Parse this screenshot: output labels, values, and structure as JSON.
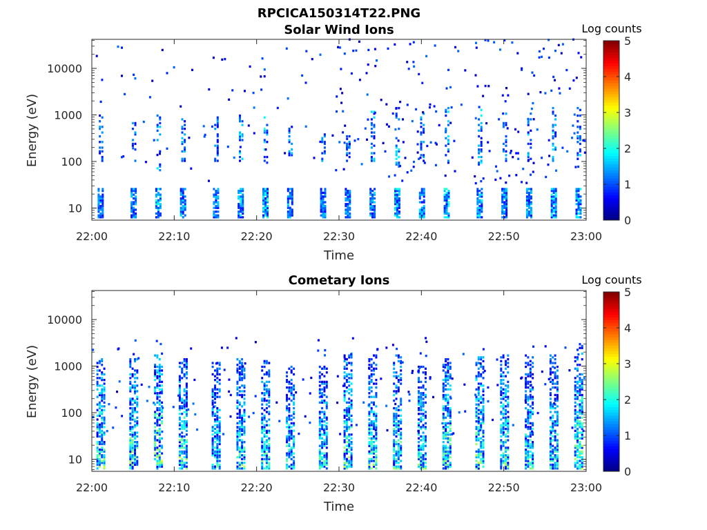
{
  "figure": {
    "title": "RPCICA150314T22.PNG"
  },
  "chart_data": [
    {
      "type": "heatmap",
      "title": "Solar Wind Ions",
      "xlabel": "Time",
      "ylabel": "Energy (eV)",
      "xticks": [
        "22:00",
        "22:10",
        "22:20",
        "22:30",
        "22:40",
        "22:50",
        "23:00"
      ],
      "xlim": [
        "22:00",
        "23:00"
      ],
      "yscale": "log",
      "ylim": [
        5.5,
        42000
      ],
      "yticks": [
        10,
        100,
        1000,
        10000
      ],
      "ytick_labels": [
        "10",
        "100",
        "1000",
        "10000"
      ],
      "colorbar": {
        "label": "Log counts",
        "range": [
          0,
          5
        ],
        "ticks": [
          "0",
          "1",
          "2",
          "3",
          "4",
          "5"
        ],
        "colormap": "jet"
      },
      "pattern": {
        "pulses": [
          {
            "t": "22:01",
            "lowE": [
              6,
              27
            ],
            "midE": [
              90,
              1000
            ],
            "lvl": 1.0
          },
          {
            "t": "22:05",
            "lowE": [
              6,
              27
            ],
            "midE": [
              100,
              900
            ],
            "lvl": 1.1
          },
          {
            "t": "22:08",
            "lowE": [
              6,
              27
            ],
            "midE": [
              60,
              1000
            ],
            "lvl": 1.6
          },
          {
            "t": "22:11",
            "lowE": [
              6,
              27
            ],
            "midE": [
              100,
              950
            ],
            "lvl": 1.2
          },
          {
            "t": "22:15",
            "lowE": [
              6,
              27
            ],
            "midE": [
              100,
              900
            ],
            "lvl": 1.1
          },
          {
            "t": "22:18",
            "lowE": [
              6,
              27
            ],
            "midE": [
              100,
              1000
            ],
            "lvl": 1.5
          },
          {
            "t": "22:21",
            "lowE": [
              6,
              27
            ],
            "midE": [
              90,
              950
            ],
            "lvl": 1.7
          },
          {
            "t": "22:24",
            "lowE": [
              6,
              27
            ],
            "midE": [
              120,
              600
            ],
            "lvl": 1.2
          },
          {
            "t": "22:28",
            "lowE": [
              6,
              27
            ],
            "midE": [
              100,
              400
            ],
            "lvl": 1.1
          },
          {
            "t": "22:31",
            "lowE": [
              6,
              27
            ],
            "midE": [
              100,
              400
            ],
            "lvl": 1.1
          },
          {
            "t": "22:34",
            "lowE": [
              6,
              27
            ],
            "midE": [
              100,
              1200
            ],
            "lvl": 1.3
          },
          {
            "t": "22:37",
            "lowE": [
              6,
              27
            ],
            "midE": [
              60,
              1500
            ],
            "lvl": 1.5
          },
          {
            "t": "22:40",
            "lowE": [
              6,
              27
            ],
            "midE": [
              100,
              1200
            ],
            "lvl": 1.2
          },
          {
            "t": "22:43",
            "lowE": [
              6,
              27
            ],
            "midE": [
              80,
              1500
            ],
            "lvl": 1.6
          },
          {
            "t": "22:47",
            "lowE": [
              6,
              27
            ],
            "midE": [
              80,
              1500
            ],
            "lvl": 1.4
          },
          {
            "t": "22:50",
            "lowE": [
              6,
              27
            ],
            "midE": [
              100,
              1200
            ],
            "lvl": 1.2
          },
          {
            "t": "22:53",
            "lowE": [
              6,
              27
            ],
            "midE": [
              80,
              1500
            ],
            "lvl": 1.3
          },
          {
            "t": "22:56",
            "lowE": [
              6,
              27
            ],
            "midE": [
              100,
              1500
            ],
            "lvl": 1.5
          },
          {
            "t": "22:59",
            "lowE": [
              6,
              27
            ],
            "midE": [
              100,
              1500
            ],
            "lvl": 1.4
          }
        ],
        "background_max_level": 1.0
      }
    },
    {
      "type": "heatmap",
      "title": "Cometary Ions",
      "xlabel": "Time",
      "ylabel": "Energy (eV)",
      "xticks": [
        "22:00",
        "22:10",
        "22:20",
        "22:30",
        "22:40",
        "22:50",
        "23:00"
      ],
      "xlim": [
        "22:00",
        "23:00"
      ],
      "yscale": "log",
      "ylim": [
        5.5,
        42000
      ],
      "yticks": [
        10,
        100,
        1000,
        10000
      ],
      "ytick_labels": [
        "10",
        "100",
        "1000",
        "10000"
      ],
      "colorbar": {
        "label": "Log counts",
        "range": [
          0,
          5
        ],
        "ticks": [
          "0",
          "1",
          "2",
          "3",
          "4",
          "5"
        ],
        "colormap": "jet"
      },
      "pattern": {
        "pulses": [
          {
            "t": "22:01",
            "range": [
              6,
              1500
            ],
            "lvl": 2.3
          },
          {
            "t": "22:05",
            "range": [
              6,
              1500
            ],
            "lvl": 2.3
          },
          {
            "t": "22:08",
            "range": [
              6,
              2000
            ],
            "lvl": 2.5
          },
          {
            "t": "22:11",
            "range": [
              6,
              1500
            ],
            "lvl": 2.3
          },
          {
            "t": "22:15",
            "range": [
              6,
              1300
            ],
            "lvl": 2.0
          },
          {
            "t": "22:18",
            "range": [
              6,
              1500
            ],
            "lvl": 2.1
          },
          {
            "t": "22:21",
            "range": [
              6,
              1500
            ],
            "lvl": 2.0
          },
          {
            "t": "22:24",
            "range": [
              6,
              1000
            ],
            "lvl": 1.9
          },
          {
            "t": "22:28",
            "range": [
              6,
              1000
            ],
            "lvl": 1.9
          },
          {
            "t": "22:31",
            "range": [
              6,
              2000
            ],
            "lvl": 2.3
          },
          {
            "t": "22:34",
            "range": [
              6,
              1800
            ],
            "lvl": 2.1
          },
          {
            "t": "22:37",
            "range": [
              6,
              1800
            ],
            "lvl": 2.2
          },
          {
            "t": "22:40",
            "range": [
              6,
              1000
            ],
            "lvl": 2.0
          },
          {
            "t": "22:43",
            "range": [
              6,
              1500
            ],
            "lvl": 2.5
          },
          {
            "t": "22:47",
            "range": [
              6,
              1800
            ],
            "lvl": 2.4
          },
          {
            "t": "22:50",
            "range": [
              6,
              1800
            ],
            "lvl": 2.2
          },
          {
            "t": "22:53",
            "range": [
              6,
              1800
            ],
            "lvl": 2.0
          },
          {
            "t": "22:56",
            "range": [
              6,
              1800
            ],
            "lvl": 2.0
          },
          {
            "t": "22:59",
            "range": [
              6,
              3000
            ],
            "lvl": 2.4
          }
        ],
        "background_max_level": 1.0
      }
    }
  ]
}
